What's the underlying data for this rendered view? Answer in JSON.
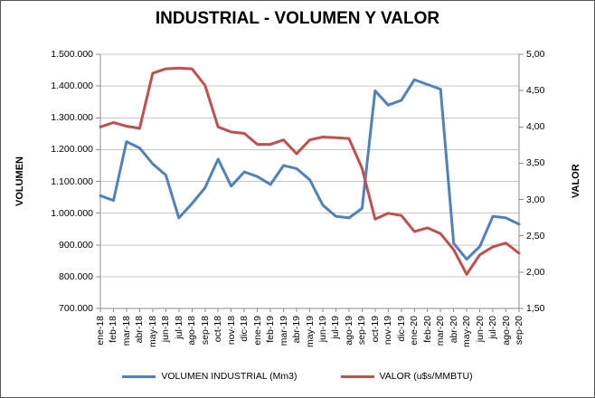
{
  "title": "INDUSTRIAL - VOLUMEN Y VALOR",
  "colors": {
    "volumen_series": "#4F81BD",
    "valor_series": "#C0504D",
    "gridline": "#C6C6C6",
    "axis": "#8E8E8E",
    "text": "#000000"
  },
  "chart_data": {
    "type": "line",
    "title": "INDUSTRIAL - VOLUMEN Y VALOR",
    "grid": true,
    "legend_position": "bottom",
    "categories": [
      "ene-18",
      "feb-18",
      "mar-18",
      "abr-18",
      "may-18",
      "jun-18",
      "jul-18",
      "ago-18",
      "sep-18",
      "oct-18",
      "nov-18",
      "dic-18",
      "ene-19",
      "feb-19",
      "mar-19",
      "abr-19",
      "may-19",
      "jun-19",
      "jul-19",
      "ago-19",
      "sep-19",
      "oct-19",
      "nov-19",
      "dic-19",
      "ene-20",
      "feb-20",
      "mar-20",
      "abr-20",
      "may-20",
      "jun-20",
      "jul-20",
      "ago-20",
      "sep-20"
    ],
    "series": [
      {
        "name": "VOLUMEN INDUSTRIAL (Mm3)",
        "axis": "left",
        "color": "#4F81BD",
        "values": [
          1055000,
          1040000,
          1225000,
          1205000,
          1155000,
          1120000,
          985000,
          1030000,
          1080000,
          1170000,
          1085000,
          1130000,
          1115000,
          1090000,
          1150000,
          1140000,
          1105000,
          1025000,
          990000,
          985000,
          1015000,
          1385000,
          1340000,
          1355000,
          1420000,
          1405000,
          1390000,
          905000,
          855000,
          895000,
          990000,
          985000,
          965000
        ]
      },
      {
        "name": "VALOR (u$s/MMBTU)",
        "axis": "right",
        "color": "#C0504D",
        "values": [
          4.0,
          4.06,
          4.01,
          3.98,
          4.74,
          4.8,
          4.81,
          4.8,
          4.57,
          4.0,
          3.93,
          3.91,
          3.76,
          3.76,
          3.82,
          3.63,
          3.82,
          3.86,
          3.85,
          3.84,
          3.43,
          2.73,
          2.81,
          2.78,
          2.56,
          2.61,
          2.53,
          2.31,
          1.97,
          2.24,
          2.35,
          2.4,
          2.26
        ]
      }
    ],
    "y_left": {
      "label": "VOLUMEN",
      "min": 700000,
      "max": 1500000,
      "tick_labels": [
        "1.500.000",
        "1.400.000",
        "1.300.000",
        "1.200.000",
        "1.100.000",
        "1.000.000",
        "900.000",
        "800.000",
        "700.000"
      ]
    },
    "y_right": {
      "label": "VALOR",
      "min": 1.5,
      "max": 5.0,
      "tick_labels": [
        "5,00",
        "4,50",
        "4,00",
        "3,50",
        "3,00",
        "2,50",
        "2,00",
        "1,50"
      ]
    }
  },
  "legend": {
    "volumen_label": "VOLUMEN INDUSTRIAL (Mm3)",
    "valor_label": "VALOR (u$s/MMBTU)"
  }
}
